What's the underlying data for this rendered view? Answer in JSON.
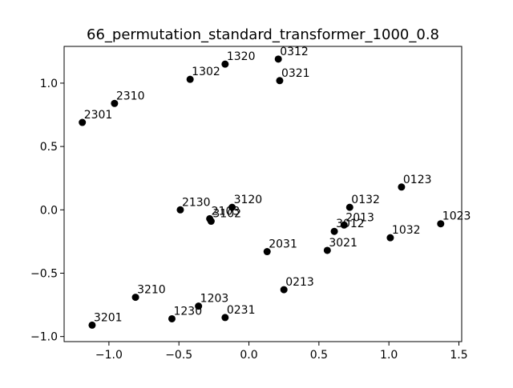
{
  "chart_data": {
    "type": "scatter",
    "title": "66_permutation_standard_transformer_1000_0.8",
    "xlabel": "",
    "ylabel": "",
    "xlim": [
      -1.32,
      1.52
    ],
    "ylim": [
      -1.04,
      1.29
    ],
    "xticks": [
      -1.0,
      -0.5,
      0.0,
      0.5,
      1.0,
      1.5
    ],
    "xtick_labels": [
      "−1.0",
      "−0.5",
      "0.0",
      "0.5",
      "1.0",
      "1.5"
    ],
    "yticks": [
      -1.0,
      -0.5,
      0.0,
      0.5,
      1.0
    ],
    "ytick_labels": [
      "−1.0",
      "−0.5",
      "0.0",
      "0.5",
      "1.0"
    ],
    "grid": false,
    "marker_color": "#000000",
    "points": [
      {
        "label": "0123",
        "x": 1.09,
        "y": 0.18
      },
      {
        "label": "0132",
        "x": 0.72,
        "y": 0.02
      },
      {
        "label": "0213",
        "x": 0.25,
        "y": -0.63
      },
      {
        "label": "0231",
        "x": -0.17,
        "y": -0.85
      },
      {
        "label": "0312",
        "x": 0.21,
        "y": 1.19
      },
      {
        "label": "0321",
        "x": 0.22,
        "y": 1.02
      },
      {
        "label": "1023",
        "x": 1.37,
        "y": -0.11
      },
      {
        "label": "1032",
        "x": 1.01,
        "y": -0.22
      },
      {
        "label": "1203",
        "x": -0.36,
        "y": -0.76
      },
      {
        "label": "1230",
        "x": -0.55,
        "y": -0.86
      },
      {
        "label": "1302",
        "x": -0.42,
        "y": 1.03
      },
      {
        "label": "1320",
        "x": -0.17,
        "y": 1.15
      },
      {
        "label": "2013",
        "x": 0.68,
        "y": -0.12
      },
      {
        "label": "2031",
        "x": 0.13,
        "y": -0.33
      },
      {
        "label": "2103",
        "x": -0.28,
        "y": -0.07
      },
      {
        "label": "2130",
        "x": -0.49,
        "y": 0.0
      },
      {
        "label": "2301",
        "x": -1.19,
        "y": 0.69
      },
      {
        "label": "2310",
        "x": -0.96,
        "y": 0.84
      },
      {
        "label": "3012",
        "x": 0.61,
        "y": -0.17
      },
      {
        "label": "3021",
        "x": 0.56,
        "y": -0.32
      },
      {
        "label": "3102",
        "x": -0.27,
        "y": -0.09
      },
      {
        "label": "3120",
        "x": -0.12,
        "y": 0.02
      },
      {
        "label": "3201",
        "x": -1.12,
        "y": -0.91
      },
      {
        "label": "3210",
        "x": -0.81,
        "y": -0.69
      }
    ]
  }
}
